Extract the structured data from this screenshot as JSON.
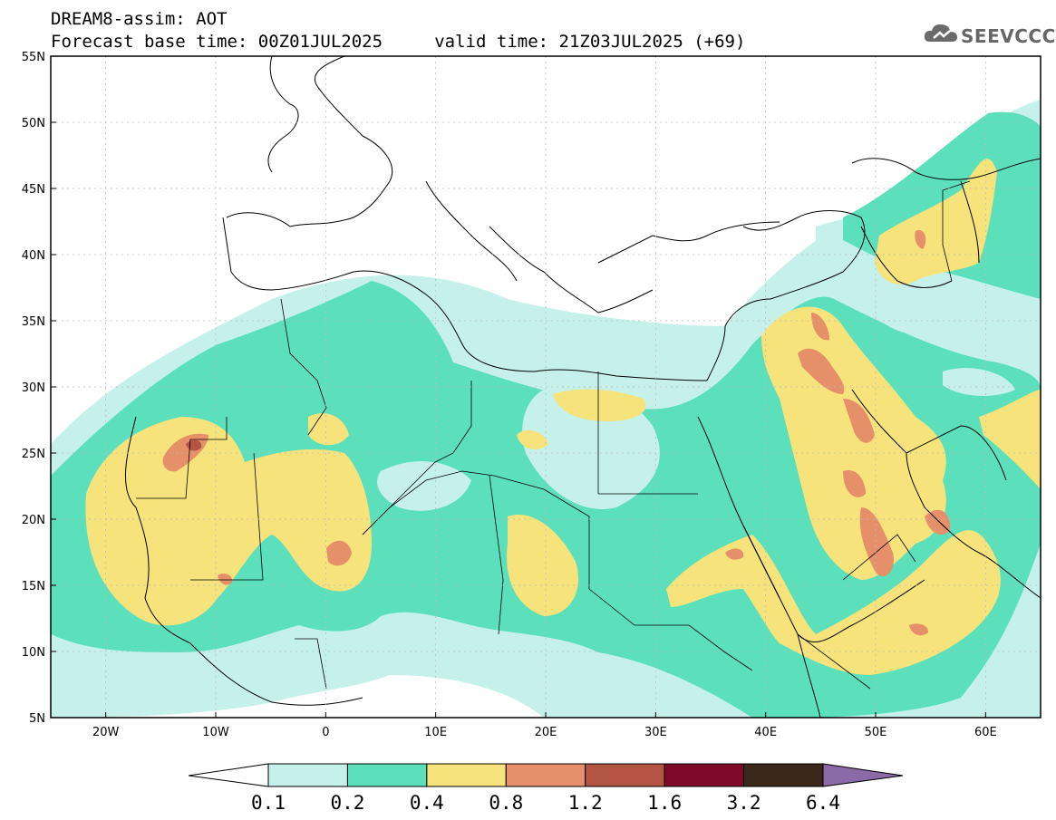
{
  "header": {
    "title_line1": "DREAM8-assim: AOT",
    "title_line2": "Forecast base time: 00Z01JUL2025     valid time: 21Z03JUL2025 (+69)"
  },
  "logo": {
    "text": "SEEVCCC",
    "icon": "cloud-icon"
  },
  "map": {
    "lat_labels": [
      "55N",
      "50N",
      "45N",
      "40N",
      "35N",
      "30N",
      "25N",
      "20N",
      "15N",
      "10N",
      "5N"
    ],
    "lon_labels": [
      "20W",
      "10W",
      "0",
      "10E",
      "20E",
      "30E",
      "40E",
      "50E",
      "60E"
    ],
    "lat_values": [
      55,
      50,
      45,
      40,
      35,
      30,
      25,
      20,
      15,
      10,
      5
    ],
    "lon_values": [
      -20,
      -10,
      0,
      10,
      20,
      30,
      40,
      50,
      60
    ],
    "extent": {
      "lon_min": -25,
      "lon_max": 65,
      "lat_min": 5,
      "lat_max": 55
    }
  },
  "colorbar": {
    "labels": [
      "0.1",
      "0.2",
      "0.4",
      "0.8",
      "1.2",
      "1.6",
      "3.2",
      "6.4"
    ],
    "colors": [
      "#c6f1ea",
      "#5be0bb",
      "#f7e37b",
      "#e6906a",
      "#b45543",
      "#7e0a28",
      "#3b281a",
      "#8b6aa8"
    ],
    "under_color": "#ffffff"
  },
  "colors": {
    "level1": "#c6f1ea",
    "level2": "#5be0bb",
    "level3": "#f7e37b",
    "level4": "#e6906a",
    "level5": "#b45543"
  }
}
